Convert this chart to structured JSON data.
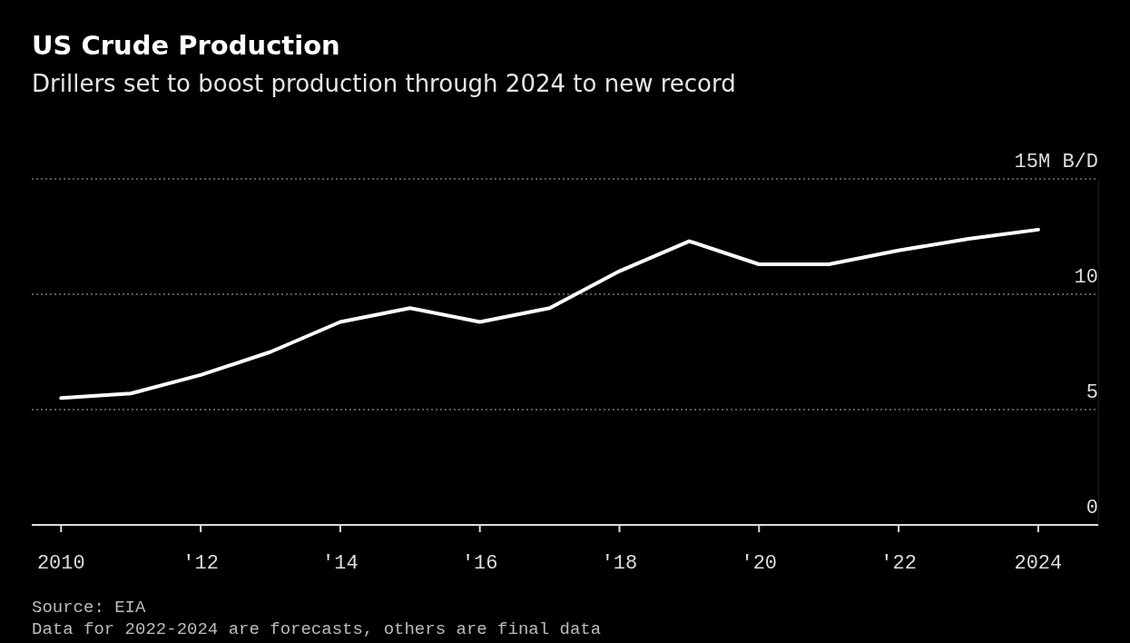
{
  "chart_data": {
    "type": "line",
    "title": "US Crude Production",
    "subtitle": "Drillers set to boost production through 2024 to new record",
    "x": [
      2010,
      2011,
      2012,
      2013,
      2014,
      2015,
      2016,
      2017,
      2018,
      2019,
      2020,
      2021,
      2022,
      2023,
      2024
    ],
    "series": [
      {
        "color": "#ffffff",
        "values": [
          5.5,
          5.7,
          6.5,
          7.5,
          8.8,
          9.4,
          8.8,
          9.4,
          11.0,
          12.3,
          11.3,
          11.3,
          11.9,
          12.4,
          12.8
        ]
      }
    ],
    "xlim": [
      2009.58,
      2024.86
    ],
    "xticks": [
      2010,
      {
        "value": 2012,
        "label": "'12"
      },
      {
        "value": 2014,
        "label": "'14"
      },
      {
        "value": 2016,
        "label": "'16"
      },
      {
        "value": 2018,
        "label": "'18"
      },
      {
        "value": 2020,
        "label": "'20"
      },
      {
        "value": 2022,
        "label": "'22"
      },
      2024
    ],
    "ylim": [
      0,
      15
    ],
    "yticks": [
      0,
      5,
      10,
      {
        "value": 15,
        "label": "15M B/D"
      }
    ],
    "grid": "y",
    "legend": false,
    "marker": "none",
    "line_style": "solid",
    "annotations": [
      "Source: EIA",
      "Data for 2022-2024 are forecasts, others are final data"
    ]
  }
}
